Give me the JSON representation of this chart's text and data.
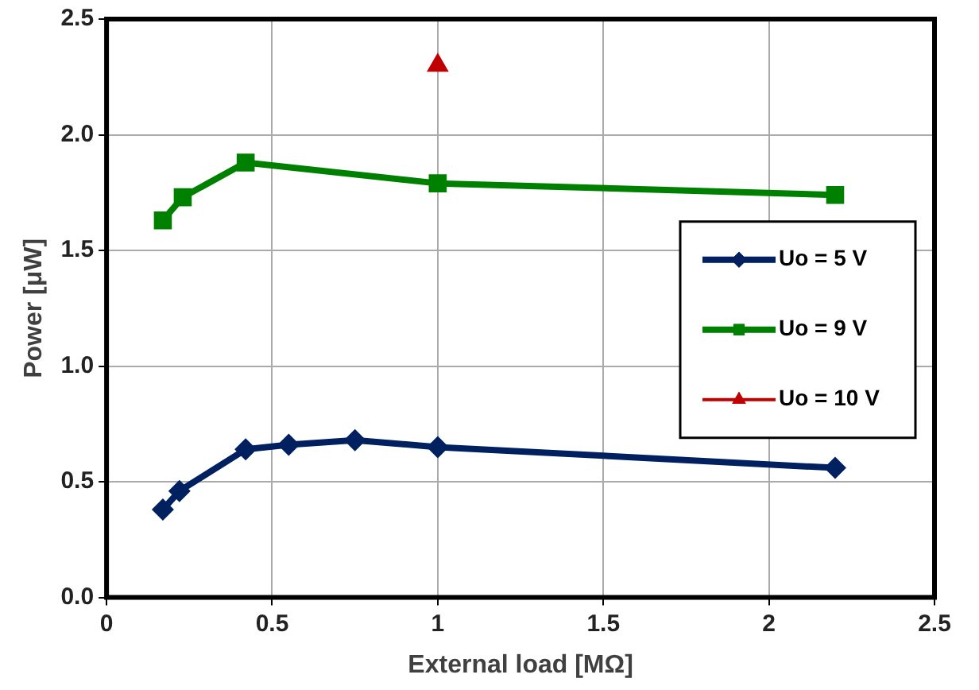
{
  "chart_data": {
    "type": "line",
    "xlabel": "External load [MΩ]",
    "ylabel": "Power [μW]",
    "xlim": [
      0,
      2.5
    ],
    "xticks": [
      0,
      0.5,
      1,
      1.5,
      2,
      2.5
    ],
    "ylim": [
      0,
      2.5
    ],
    "yticks": [
      {
        "value": 0,
        "label": "0.0"
      },
      {
        "value": 0.5,
        "label": "0.5"
      },
      {
        "value": 1,
        "label": "1.0"
      },
      {
        "value": 1.5,
        "label": "1.5"
      },
      {
        "value": 2,
        "label": "2.0"
      },
      {
        "value": 2.5,
        "label": "2.5"
      }
    ],
    "grid": true,
    "legend": "right",
    "line_style": "solid",
    "series": [
      {
        "name": "Uo = 5 V",
        "color": "#002060",
        "marker": "diamond",
        "x": [
          0.17,
          0.22,
          0.42,
          0.55,
          0.75,
          1.0,
          2.2
        ],
        "values": [
          0.38,
          0.46,
          0.64,
          0.66,
          0.68,
          0.65,
          0.56
        ]
      },
      {
        "name": "Uo = 9 V",
        "color": "#008000",
        "marker": "square",
        "x": [
          0.17,
          0.23,
          0.42,
          1.0,
          2.2
        ],
        "values": [
          1.63,
          1.73,
          1.88,
          1.79,
          1.74
        ]
      },
      {
        "name": "Uo = 10 V",
        "color": "#c00000",
        "type": "scatter",
        "marker": "triangle",
        "x": [
          1.0
        ],
        "values": [
          2.3
        ]
      }
    ]
  }
}
